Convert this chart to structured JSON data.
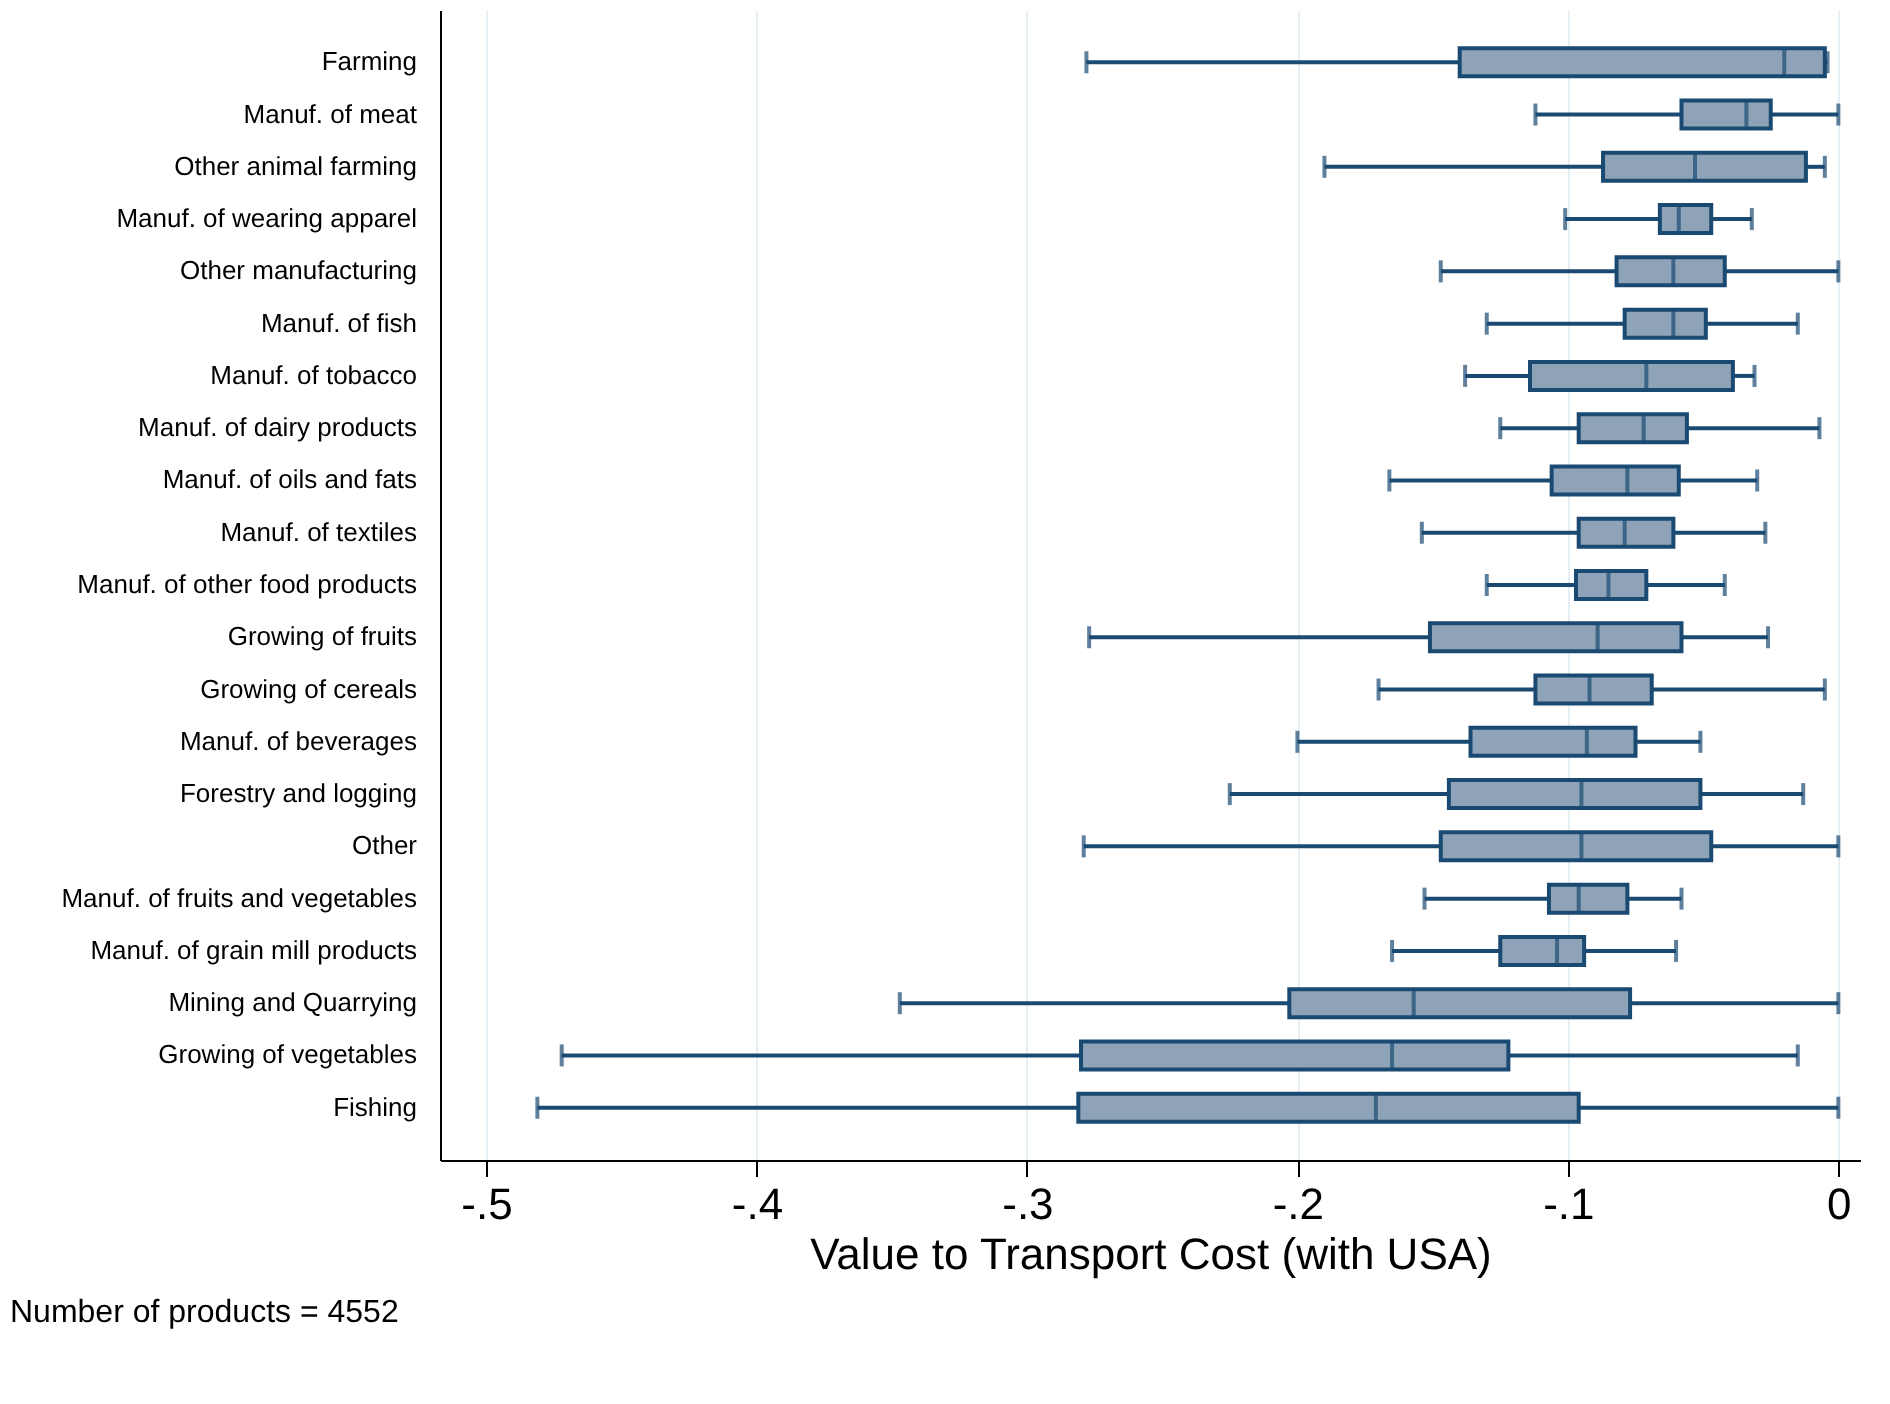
{
  "chart_data": {
    "type": "box",
    "orientation": "horizontal",
    "xlabel": "Value to Transport Cost (with USA)",
    "annotations": [
      "Number of products = 4552"
    ],
    "categories": [
      "Farming",
      "Manuf. of meat",
      "Other animal farming",
      "Manuf. of wearing apparel",
      "Other manufacturing",
      "Manuf. of fish",
      "Manuf. of tobacco",
      "Manuf. of dairy products",
      "Manuf. of oils and fats",
      "Manuf. of textiles",
      "Manuf. of other food products",
      "Growing of fruits",
      "Growing of cereals",
      "Manuf. of beverages",
      "Forestry and logging",
      "Other",
      "Manuf. of fruits and vegetables",
      "Manuf. of grain mill products",
      "Mining and Quarrying",
      "Growing of vegetables",
      "Fishing"
    ],
    "series": [
      {
        "color": "#8ea3b8",
        "boxes": [
          {
            "low": -0.278,
            "q1": -0.14,
            "median": -0.02,
            "q3": -0.005,
            "high": -0.004
          },
          {
            "low": -0.112,
            "q1": -0.058,
            "median": -0.034,
            "q3": -0.025,
            "high": 0
          },
          {
            "low": -0.19,
            "q1": -0.087,
            "median": -0.053,
            "q3": -0.012,
            "high": -0.005
          },
          {
            "low": -0.101,
            "q1": -0.066,
            "median": -0.059,
            "q3": -0.047,
            "high": -0.032
          },
          {
            "low": -0.147,
            "q1": -0.082,
            "median": -0.061,
            "q3": -0.042,
            "high": 0
          },
          {
            "low": -0.13,
            "q1": -0.079,
            "median": -0.061,
            "q3": -0.049,
            "high": -0.015
          },
          {
            "low": -0.138,
            "q1": -0.114,
            "median": -0.071,
            "q3": -0.039,
            "high": -0.031
          },
          {
            "low": -0.125,
            "q1": -0.096,
            "median": -0.072,
            "q3": -0.056,
            "high": -0.007
          },
          {
            "low": -0.166,
            "q1": -0.106,
            "median": -0.078,
            "q3": -0.059,
            "high": -0.03
          },
          {
            "low": -0.154,
            "q1": -0.096,
            "median": -0.079,
            "q3": -0.061,
            "high": -0.027
          },
          {
            "low": -0.13,
            "q1": -0.097,
            "median": -0.085,
            "q3": -0.071,
            "high": -0.042
          },
          {
            "low": -0.277,
            "q1": -0.151,
            "median": -0.089,
            "q3": -0.058,
            "high": -0.026
          },
          {
            "low": -0.17,
            "q1": -0.112,
            "median": -0.092,
            "q3": -0.069,
            "high": -0.005
          },
          {
            "low": -0.2,
            "q1": -0.136,
            "median": -0.093,
            "q3": -0.075,
            "high": -0.051
          },
          {
            "low": -0.225,
            "q1": -0.144,
            "median": -0.095,
            "q3": -0.051,
            "high": -0.013
          },
          {
            "low": -0.279,
            "q1": -0.147,
            "median": -0.095,
            "q3": -0.047,
            "high": 0
          },
          {
            "low": -0.153,
            "q1": -0.107,
            "median": -0.096,
            "q3": -0.078,
            "high": -0.058
          },
          {
            "low": -0.165,
            "q1": -0.125,
            "median": -0.104,
            "q3": -0.094,
            "high": -0.06
          },
          {
            "low": -0.347,
            "q1": -0.203,
            "median": -0.157,
            "q3": -0.077,
            "high": 0
          },
          {
            "low": -0.472,
            "q1": -0.28,
            "median": -0.165,
            "q3": -0.122,
            "high": -0.015
          },
          {
            "low": -0.481,
            "q1": -0.281,
            "median": -0.171,
            "q3": -0.096,
            "high": 0
          }
        ]
      }
    ],
    "xlim": [
      -0.517,
      0.008
    ],
    "xticks": [
      {
        "value": -0.5,
        "label": "-.5"
      },
      {
        "value": -0.4,
        "label": "-.4"
      },
      {
        "value": -0.3,
        "label": "-.3"
      },
      {
        "value": -0.2,
        "label": "-.2"
      },
      {
        "value": -0.1,
        "label": "-.1"
      },
      0
    ],
    "grid": "x"
  }
}
